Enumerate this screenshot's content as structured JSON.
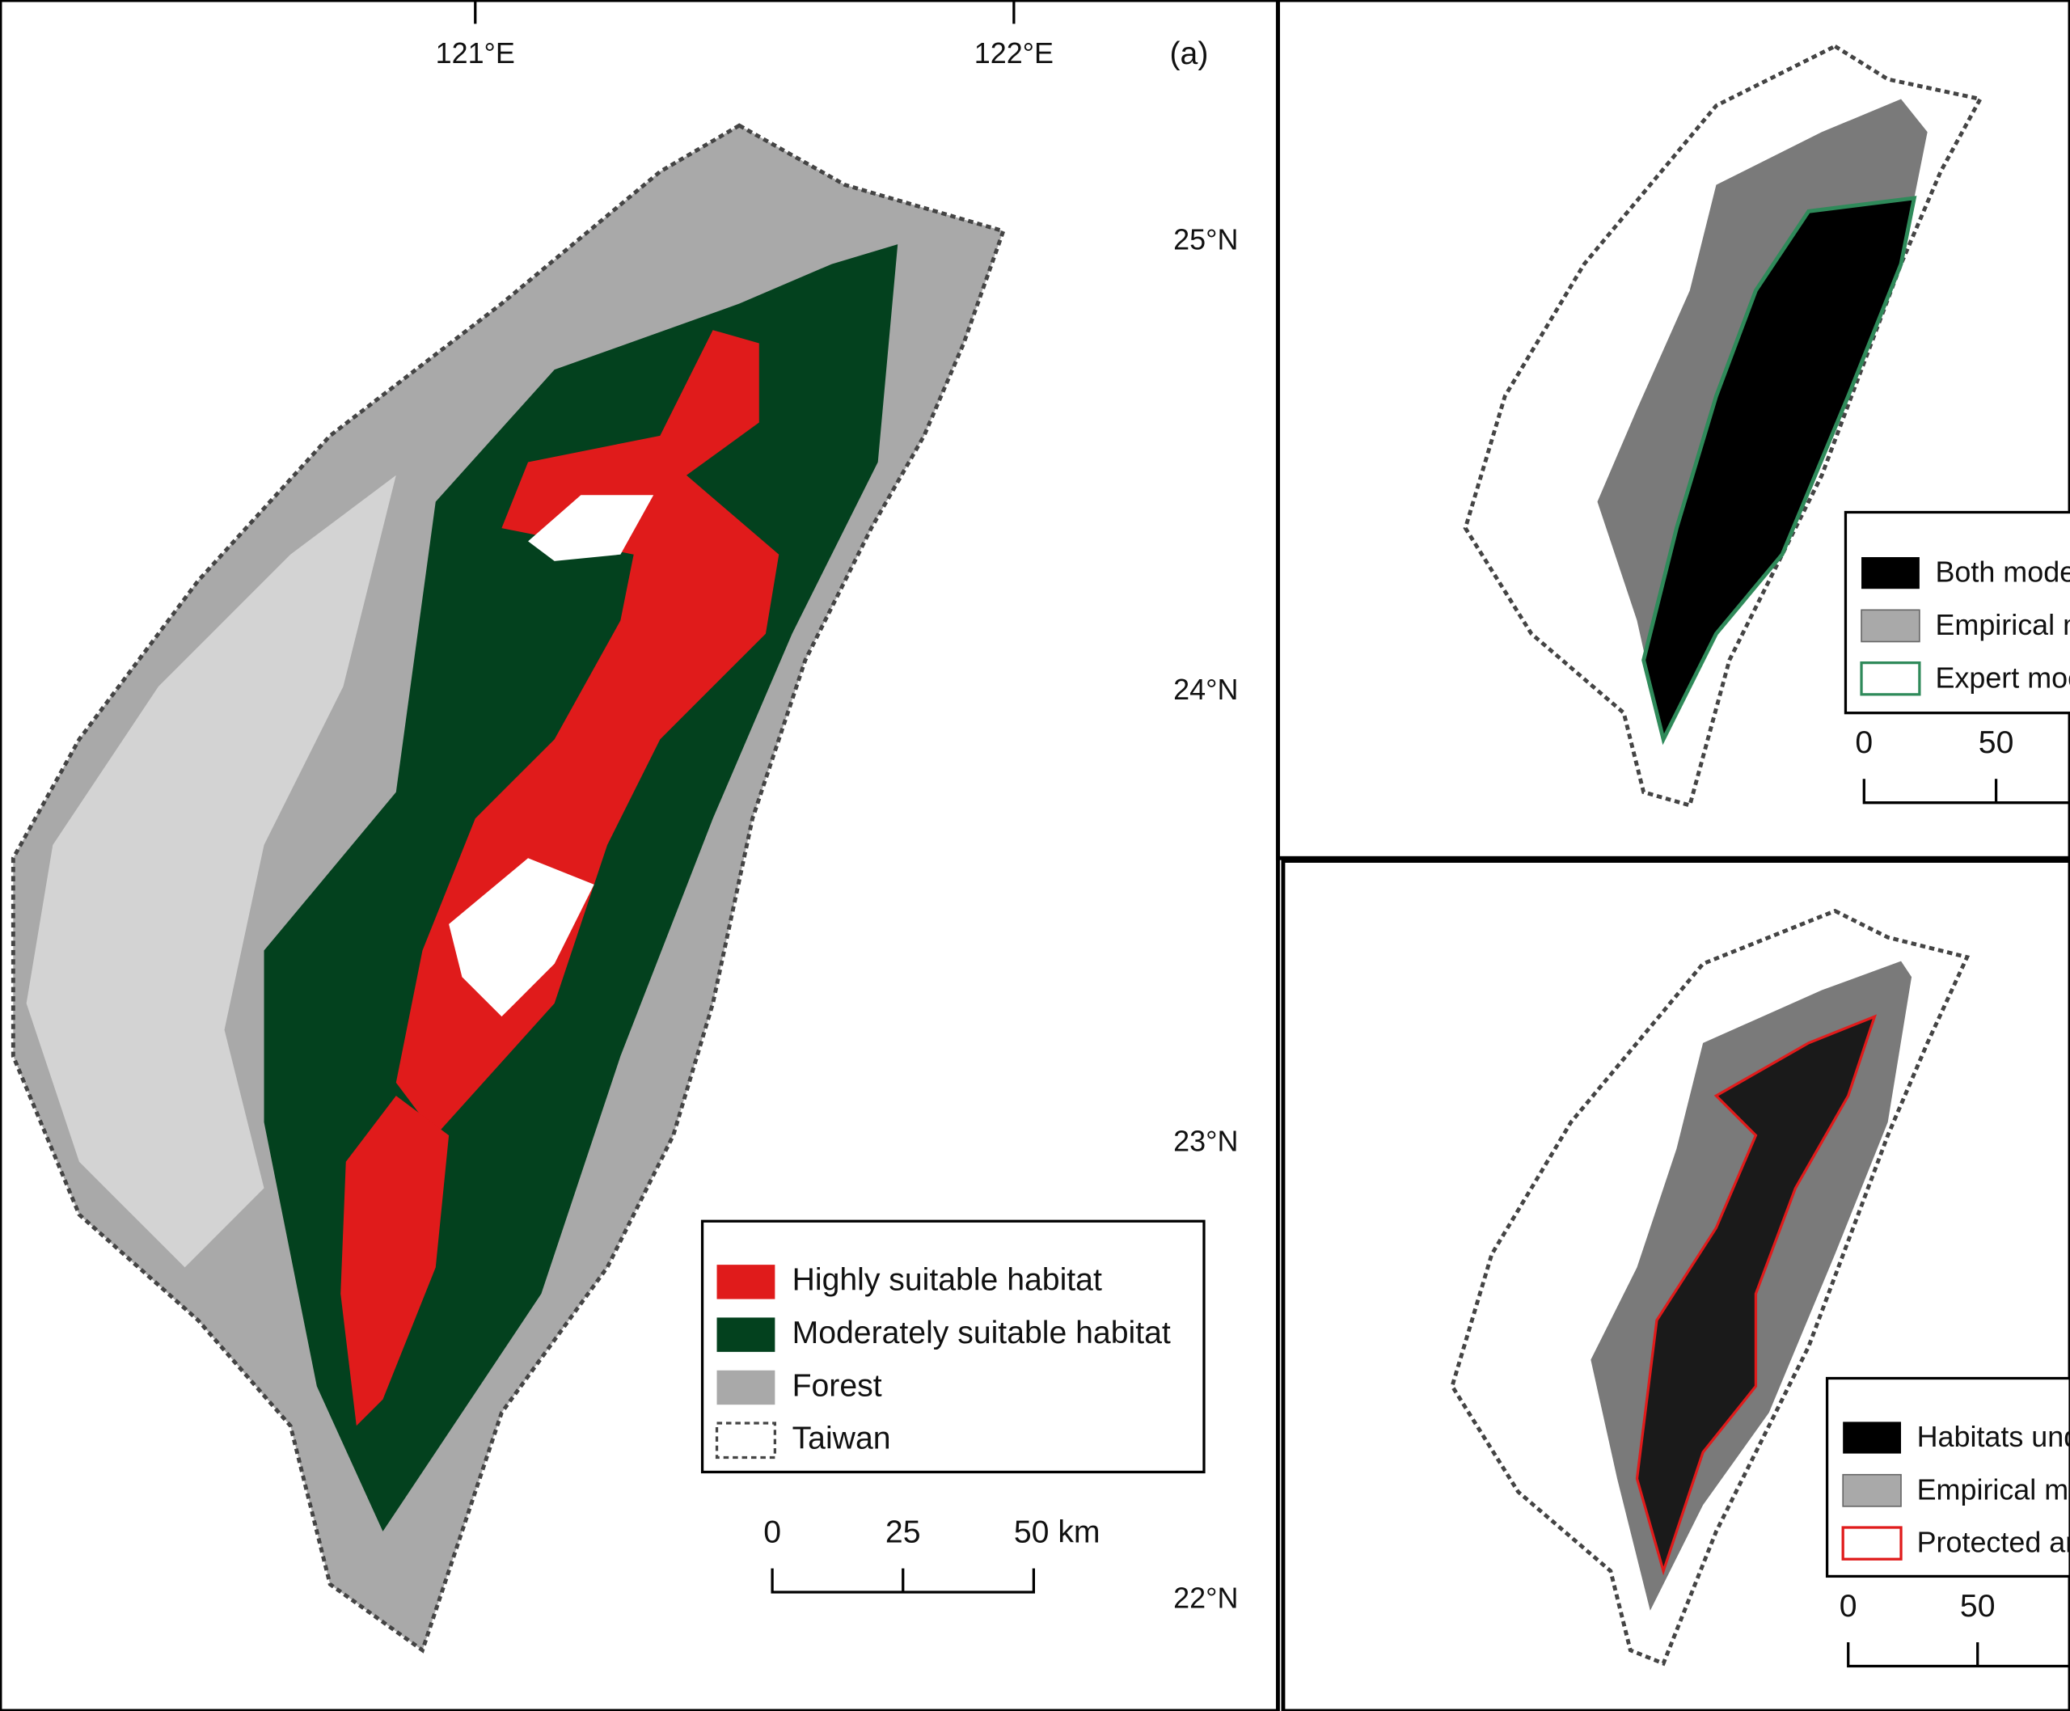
{
  "panel_label": "(a)",
  "longitude_labels": [
    "121°E",
    "122°E"
  ],
  "latitude_labels": [
    "25°N",
    "24°N",
    "23°N",
    "22°N"
  ],
  "main_map": {
    "legend": [
      "Highly suitable habitat",
      "Moderately suitable habitat",
      "Forest",
      "Taiwan"
    ],
    "scale_bar": [
      "0",
      "25",
      "50 km"
    ]
  },
  "top_right_map": {
    "legend": [
      "Both mode",
      "Empirical m",
      "Expert moc"
    ],
    "scale_bar": [
      "0",
      "50"
    ]
  },
  "bottom_right_map": {
    "legend": [
      "Habitats und",
      "Empirical mo",
      "Protected are"
    ],
    "scale_bar": [
      "0",
      "50"
    ]
  }
}
